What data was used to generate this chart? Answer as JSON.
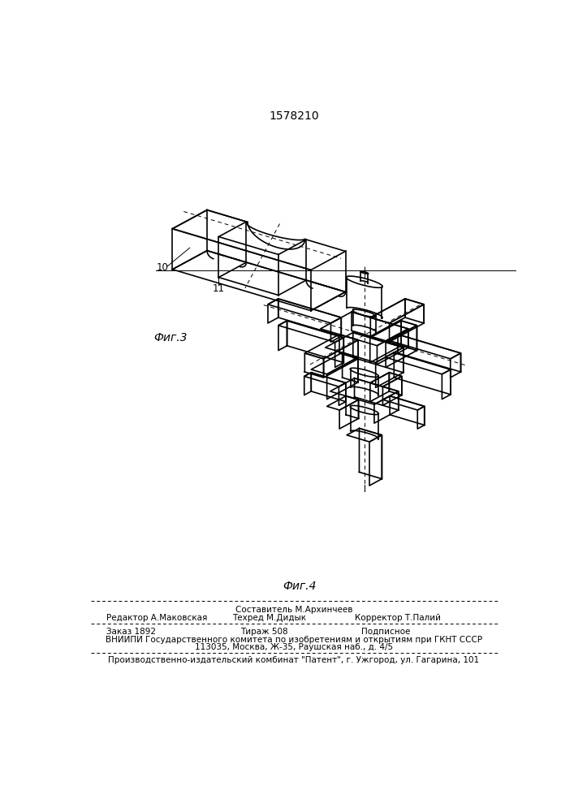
{
  "patent_number": "1578210",
  "fig3_label": "Фиг.3",
  "fig4_label": "Фиг.4",
  "label_10": "10",
  "label_11": "11",
  "editor_line": "Редактор А.Маковская",
  "compiler_line": "Составитель М.Архинчеев",
  "techred_line": "Техред М.Дидык",
  "corrector_line": "Корректор Т.Палий",
  "order_line": "Заказ 1892",
  "tirazh_line": "Тираж 508",
  "podpisnoe_line": "Подписное",
  "vniiipi_line": "ВНИИПИ Государственного комитета по изобретениям и открытиям при ГКНТ СССР",
  "address_line": "113035, Москва, Ж-35, Раушская наб., д. 4/5",
  "factory_line": "Производственно-издательский комбинат \"Патент\", г. Ужгород, ул. Гагарина, 101",
  "bg_color": "#ffffff",
  "line_color": "#000000"
}
